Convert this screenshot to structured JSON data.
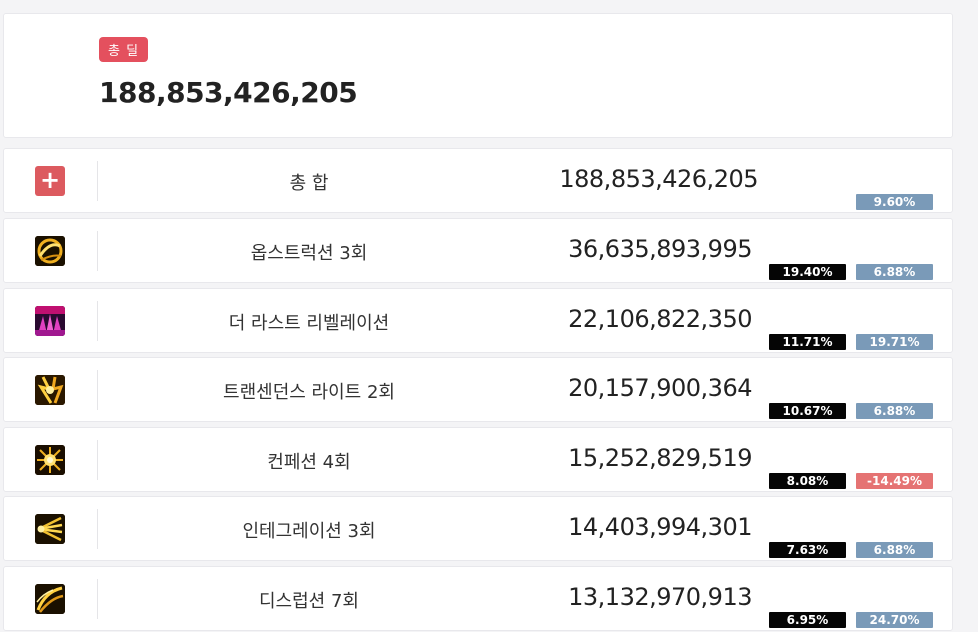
{
  "summary": {
    "badge": "총 딜",
    "total": "188,853,426,205"
  },
  "rows": [
    {
      "name": "총 합",
      "damage": "188,853,426,205",
      "share": null,
      "diff": "9.60%",
      "diff_type": "positive",
      "icon": "plus-icon"
    },
    {
      "name": "옵스트럭션 3회",
      "damage": "36,635,893,995",
      "share": "19.40%",
      "diff": "6.88%",
      "diff_type": "positive",
      "icon": "obstruction-skill-icon"
    },
    {
      "name": "더 라스트 리벨레이션",
      "damage": "22,106,822,350",
      "share": "11.71%",
      "diff": "19.71%",
      "diff_type": "positive",
      "icon": "last-revelation-skill-icon"
    },
    {
      "name": "트랜센던스 라이트 2회",
      "damage": "20,157,900,364",
      "share": "10.67%",
      "diff": "6.88%",
      "diff_type": "positive",
      "icon": "transcendence-light-skill-icon"
    },
    {
      "name": "컨페션 4회",
      "damage": "15,252,829,519",
      "share": "8.08%",
      "diff": "-14.49%",
      "diff_type": "negative",
      "icon": "confession-skill-icon"
    },
    {
      "name": "인테그레이션 3회",
      "damage": "14,403,994,301",
      "share": "7.63%",
      "diff": "6.88%",
      "diff_type": "positive",
      "icon": "integration-skill-icon"
    },
    {
      "name": "디스럽션 7회",
      "damage": "13,132,970,913",
      "share": "6.95%",
      "diff": "24.70%",
      "diff_type": "positive",
      "icon": "disruption-skill-icon"
    }
  ],
  "colors": {
    "badge": "#e4505e",
    "share_bg": "#050505",
    "diff_positive": "#7a9ab8",
    "diff_negative": "#e57373"
  }
}
